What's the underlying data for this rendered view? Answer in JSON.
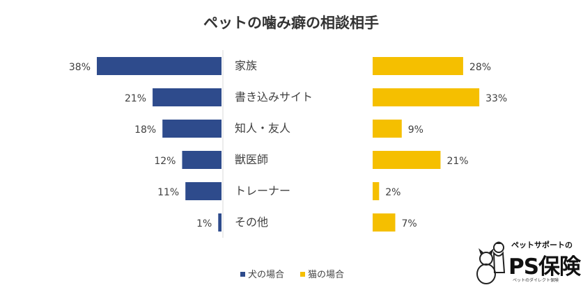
{
  "chart_data": {
    "type": "bar",
    "title": "ペットの噛み癖の相談相手",
    "categories": [
      "家族",
      "書き込みサイト",
      "知人・友人",
      "獣医師",
      "トレーナー",
      "その他"
    ],
    "series": [
      {
        "name": "犬の場合",
        "values": [
          38,
          21,
          18,
          12,
          11,
          1
        ],
        "color": "#2e4b8c",
        "direction": "left"
      },
      {
        "name": "猫の場合",
        "values": [
          28,
          33,
          9,
          21,
          2,
          7
        ],
        "color": "#f5bf00",
        "direction": "right"
      }
    ],
    "value_suffix": "%",
    "legend_position": "bottom",
    "grid": false
  },
  "logo": {
    "top_text": "ペットサポートの",
    "main_text": "PS保険",
    "sub_text": "ペットのダイレクト保険"
  }
}
